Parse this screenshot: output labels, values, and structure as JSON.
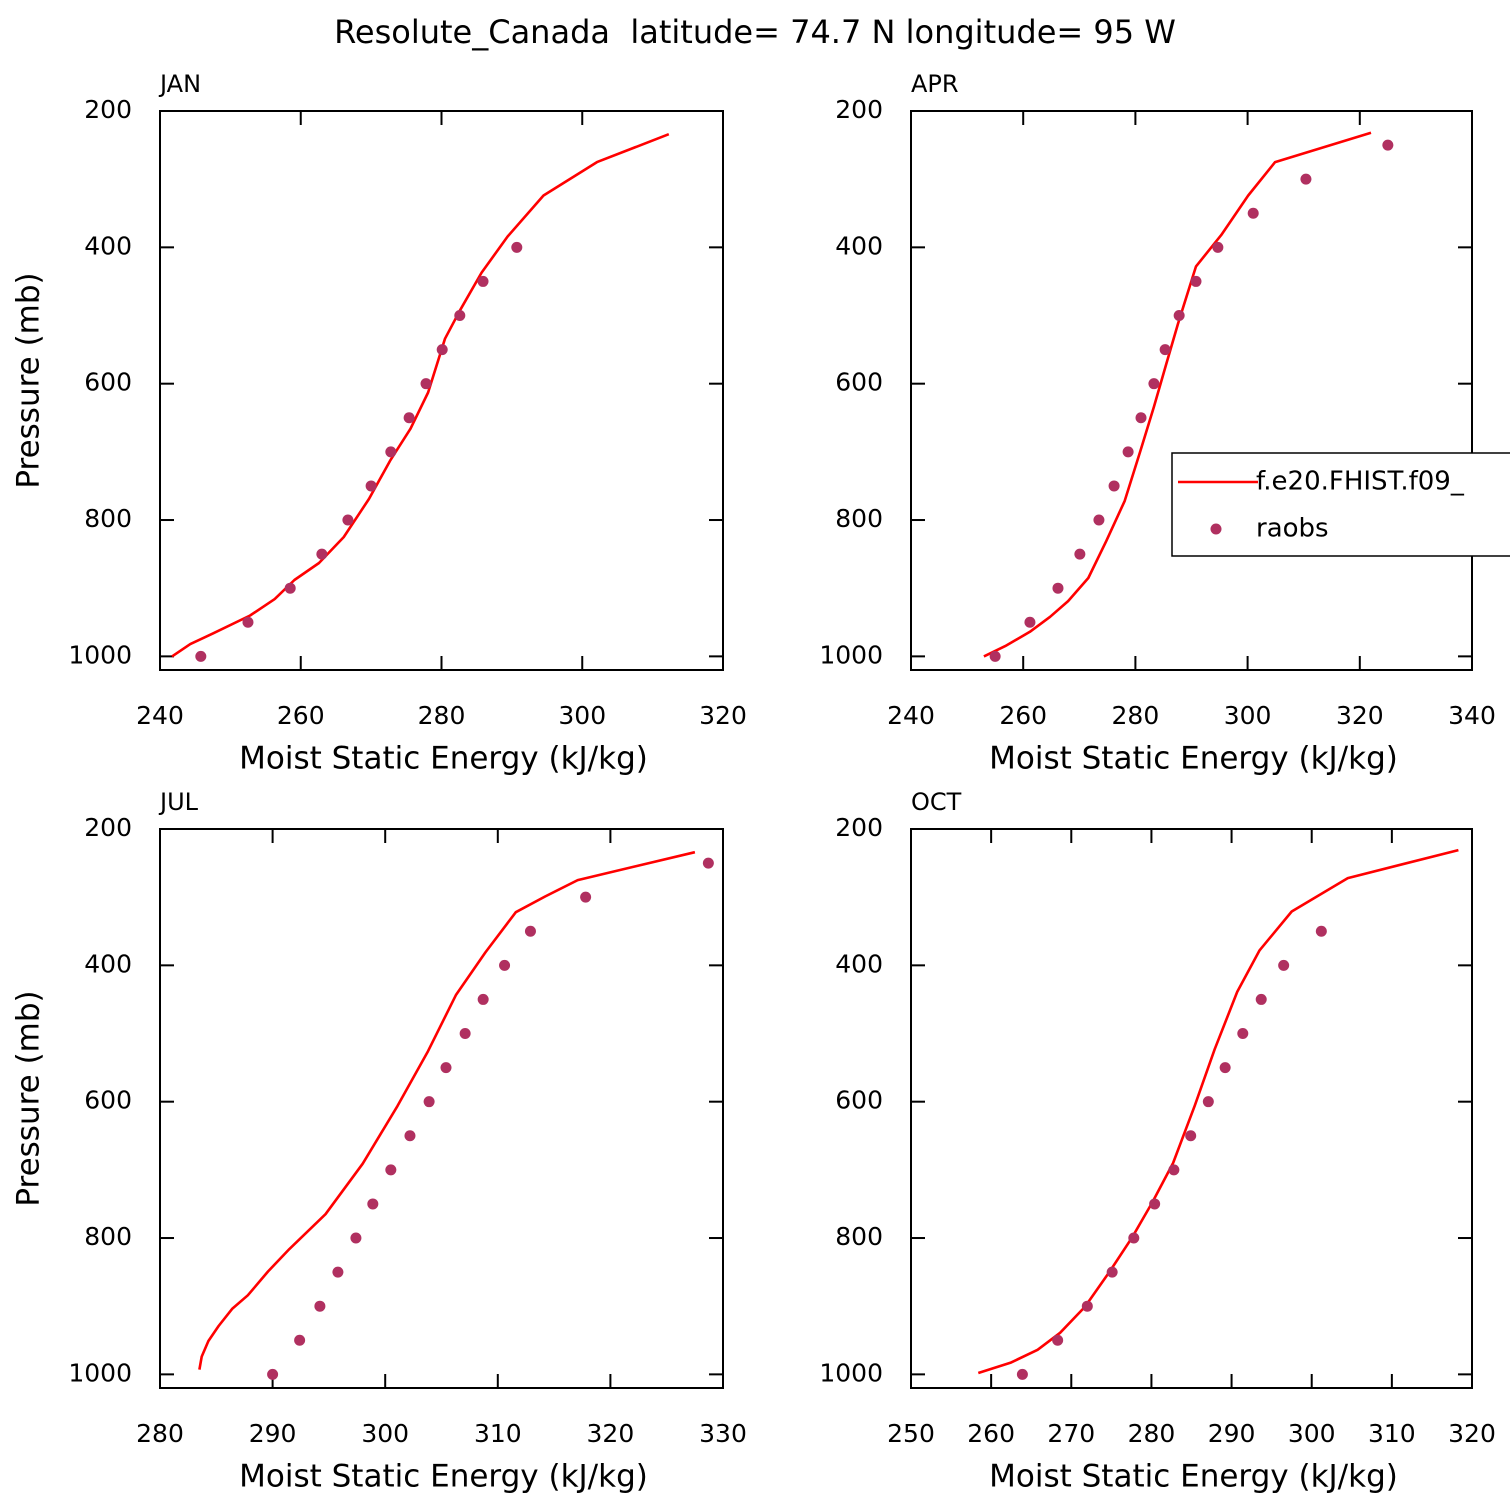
{
  "title": "Resolute_Canada  latitude= 74.7 N longitude= 95 W",
  "chart_data": [
    {
      "type": "line",
      "title": "JAN",
      "xlabel": "Moist Static Energy (kJ/kg)",
      "ylabel": "Pressure (mb)",
      "xlim": [
        240,
        320
      ],
      "xticks": [
        240,
        260,
        280,
        300,
        320
      ],
      "ylim": [
        200,
        1020
      ],
      "yticks": [
        200,
        400,
        600,
        800,
        1000
      ],
      "y_inverted": true,
      "series": [
        {
          "style": "line",
          "color": "#ff0000",
          "x": [
            241.7,
            244.3,
            247.6,
            252.8,
            256.3,
            259.1,
            262.6,
            266.1,
            269.7,
            272.7,
            275.6,
            278.1,
            280.5,
            282.6,
            285.7,
            289.4,
            294.5,
            302.1,
            312.3
          ],
          "values": [
            1000,
            982,
            966,
            940,
            916,
            888,
            863,
            825,
            769,
            713,
            666,
            613,
            534,
            493,
            437,
            384,
            324,
            275,
            234
          ]
        },
        {
          "style": "marker",
          "color": "#b03060",
          "x": [
            245.8,
            252.5,
            258.5,
            263.0,
            266.7,
            270.0,
            272.8,
            275.4,
            277.8,
            280.1,
            282.6,
            285.9,
            290.7
          ],
          "values": [
            1000,
            950,
            900,
            850,
            800,
            750,
            700,
            650,
            600,
            550,
            500,
            450,
            400
          ]
        }
      ]
    },
    {
      "type": "line",
      "title": "APR",
      "xlabel": "Moist Static Energy (kJ/kg)",
      "xlim": [
        240,
        340
      ],
      "xticks": [
        240,
        260,
        280,
        300,
        320,
        340
      ],
      "ylim": [
        200,
        1020
      ],
      "yticks": [
        200,
        400,
        600,
        800,
        1000
      ],
      "y_inverted": true,
      "legend": "right",
      "series": [
        {
          "name": "f.e20.FHIST.f09_",
          "style": "line",
          "color": "#ff0000",
          "x": [
            253.0,
            256.8,
            261.2,
            264.8,
            268.0,
            271.6,
            274.8,
            278.1,
            280.8,
            283.3,
            285.5,
            287.6,
            290.8,
            295.3,
            300.1,
            304.9,
            322.0
          ],
          "values": [
            1000,
            985,
            964,
            942,
            919,
            885,
            831,
            772,
            701,
            634,
            571,
            512,
            428,
            382,
            324,
            275,
            232
          ]
        },
        {
          "name": "raobs",
          "style": "marker",
          "color": "#b03060",
          "x": [
            255.0,
            261.2,
            266.2,
            270.1,
            273.5,
            276.2,
            278.7,
            281.0,
            283.3,
            285.3,
            287.8,
            290.8,
            294.7,
            301.0,
            310.4,
            325.0
          ],
          "values": [
            1000,
            950,
            900,
            850,
            800,
            750,
            700,
            650,
            600,
            550,
            500,
            450,
            400,
            350,
            300,
            250
          ]
        }
      ]
    },
    {
      "type": "line",
      "title": "JUL",
      "xlabel": "Moist Static Energy (kJ/kg)",
      "ylabel": "Pressure (mb)",
      "xlim": [
        280,
        330
      ],
      "xticks": [
        280,
        290,
        300,
        310,
        320,
        330
      ],
      "ylim": [
        200,
        1020
      ],
      "yticks": [
        200,
        400,
        600,
        800,
        1000
      ],
      "y_inverted": true,
      "series": [
        {
          "style": "line",
          "color": "#ff0000",
          "x": [
            283.5,
            283.7,
            284.3,
            285.2,
            286.4,
            287.8,
            289.6,
            291.5,
            294.7,
            298.0,
            301.1,
            303.8,
            306.3,
            308.9,
            311.6,
            314.2,
            317.1,
            327.5
          ],
          "values": [
            993,
            974,
            951,
            929,
            904,
            884,
            849,
            816,
            765,
            691,
            606,
            526,
            443,
            381,
            322,
            299,
            275,
            234
          ]
        },
        {
          "style": "marker",
          "color": "#b03060",
          "x": [
            290.0,
            292.4,
            294.2,
            295.8,
            297.4,
            298.9,
            300.5,
            302.2,
            303.9,
            305.4,
            307.1,
            308.7,
            310.6,
            312.9,
            317.8,
            328.7
          ],
          "values": [
            1000,
            950,
            900,
            850,
            800,
            750,
            700,
            650,
            600,
            550,
            500,
            450,
            400,
            350,
            300,
            250
          ]
        }
      ]
    },
    {
      "type": "line",
      "title": "OCT",
      "xlabel": "Moist Static Energy (kJ/kg)",
      "xlim": [
        250,
        320
      ],
      "xticks": [
        250,
        260,
        270,
        280,
        290,
        300,
        310,
        320
      ],
      "ylim": [
        200,
        1020
      ],
      "yticks": [
        200,
        400,
        600,
        800,
        1000
      ],
      "y_inverted": true,
      "series": [
        {
          "style": "line",
          "color": "#ff0000",
          "x": [
            258.4,
            262.4,
            265.8,
            268.6,
            271.7,
            274.8,
            277.6,
            280.1,
            282.7,
            285.4,
            287.9,
            290.7,
            293.5,
            297.5,
            304.5,
            318.3
          ],
          "values": [
            998,
            983,
            964,
            939,
            901,
            849,
            799,
            748,
            690,
            606,
            523,
            439,
            378,
            321,
            272,
            231
          ]
        },
        {
          "style": "marker",
          "color": "#b03060",
          "x": [
            263.9,
            268.3,
            272.0,
            275.1,
            277.8,
            280.4,
            282.8,
            284.9,
            287.1,
            289.2,
            291.4,
            293.7,
            296.5,
            301.2
          ],
          "values": [
            1000,
            950,
            900,
            850,
            800,
            750,
            700,
            650,
            600,
            550,
            500,
            450,
            400,
            350
          ]
        }
      ]
    }
  ]
}
